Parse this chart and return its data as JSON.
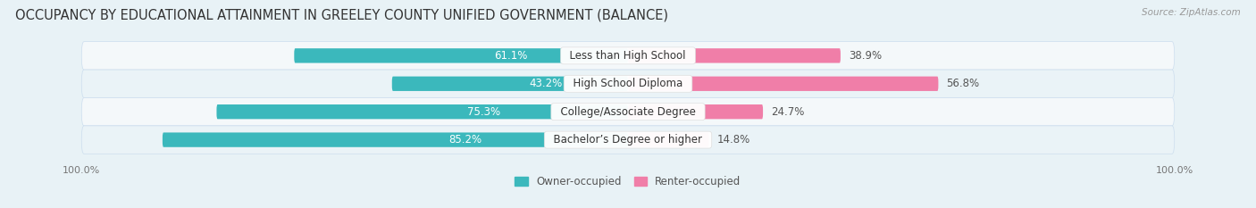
{
  "title": "OCCUPANCY BY EDUCATIONAL ATTAINMENT IN GREELEY COUNTY UNIFIED GOVERNMENT (BALANCE)",
  "source": "Source: ZipAtlas.com",
  "categories": [
    "Less than High School",
    "High School Diploma",
    "College/Associate Degree",
    "Bachelor’s Degree or higher"
  ],
  "owner_values": [
    61.1,
    43.2,
    75.3,
    85.2
  ],
  "renter_values": [
    38.9,
    56.8,
    24.7,
    14.8
  ],
  "owner_color": "#3bb8bc",
  "renter_color": "#f07ea8",
  "owner_label": "Owner-occupied",
  "renter_label": "Renter-occupied",
  "bg_color": "#e8f2f6",
  "row_bg_even": "#f4f8fa",
  "row_bg_odd": "#eaf3f7",
  "title_fontsize": 10.5,
  "label_fontsize": 8.5,
  "value_fontsize": 8.5,
  "axis_tick_fontsize": 8,
  "bar_height": 0.52,
  "figsize": [
    14.06,
    2.33
  ],
  "dpi": 100
}
